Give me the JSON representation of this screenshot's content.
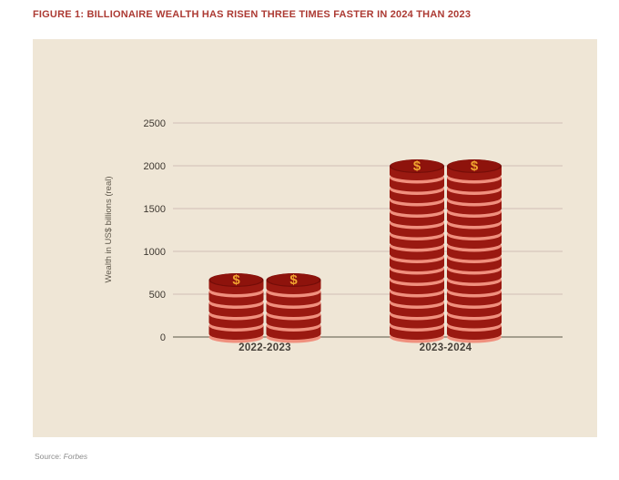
{
  "figure": {
    "title": "FIGURE 1: BILLIONAIRE WEALTH HAS RISEN THREE TIMES FASTER IN 2024 THAN 2023",
    "source_prefix": "Source: ",
    "source_name": "Forbes"
  },
  "chart_data": {
    "type": "bar",
    "title": "FIGURE 1: BILLIONAIRE WEALTH HAS RISEN THREE TIMES FASTER IN 2024 THAN 2023",
    "subtitle": "",
    "categories": [
      "2022-2023",
      "2023-2024"
    ],
    "values": [
      600,
      2000
    ],
    "stacks_per_category": 2,
    "coins_per_stack": [
      5,
      15
    ],
    "currency_symbol": "$",
    "xlabel": "",
    "ylabel": "Wealth in US$ billions (real)",
    "ylim": [
      0,
      2500
    ],
    "yticks": [
      0,
      500,
      1000,
      1500,
      2000,
      2500
    ],
    "grid": true,
    "legend": false,
    "source": "Source: Forbes",
    "colors": {
      "panel_bg": "#EFE6D6",
      "gridline": "#DBCBC0",
      "axis_line": "#8C8577",
      "title": "#AC3A33",
      "tick_text": "#3E3831",
      "category_text": "#47413A",
      "axis_label_text": "#5E574A",
      "source_text": "#8C8C8C",
      "coin_body": "#9A1911",
      "coin_face": "#8E130C",
      "coin_top_shadow": "#750D08",
      "coin_rim_light": "#F0907E",
      "dollar": "#F0A42F"
    }
  }
}
